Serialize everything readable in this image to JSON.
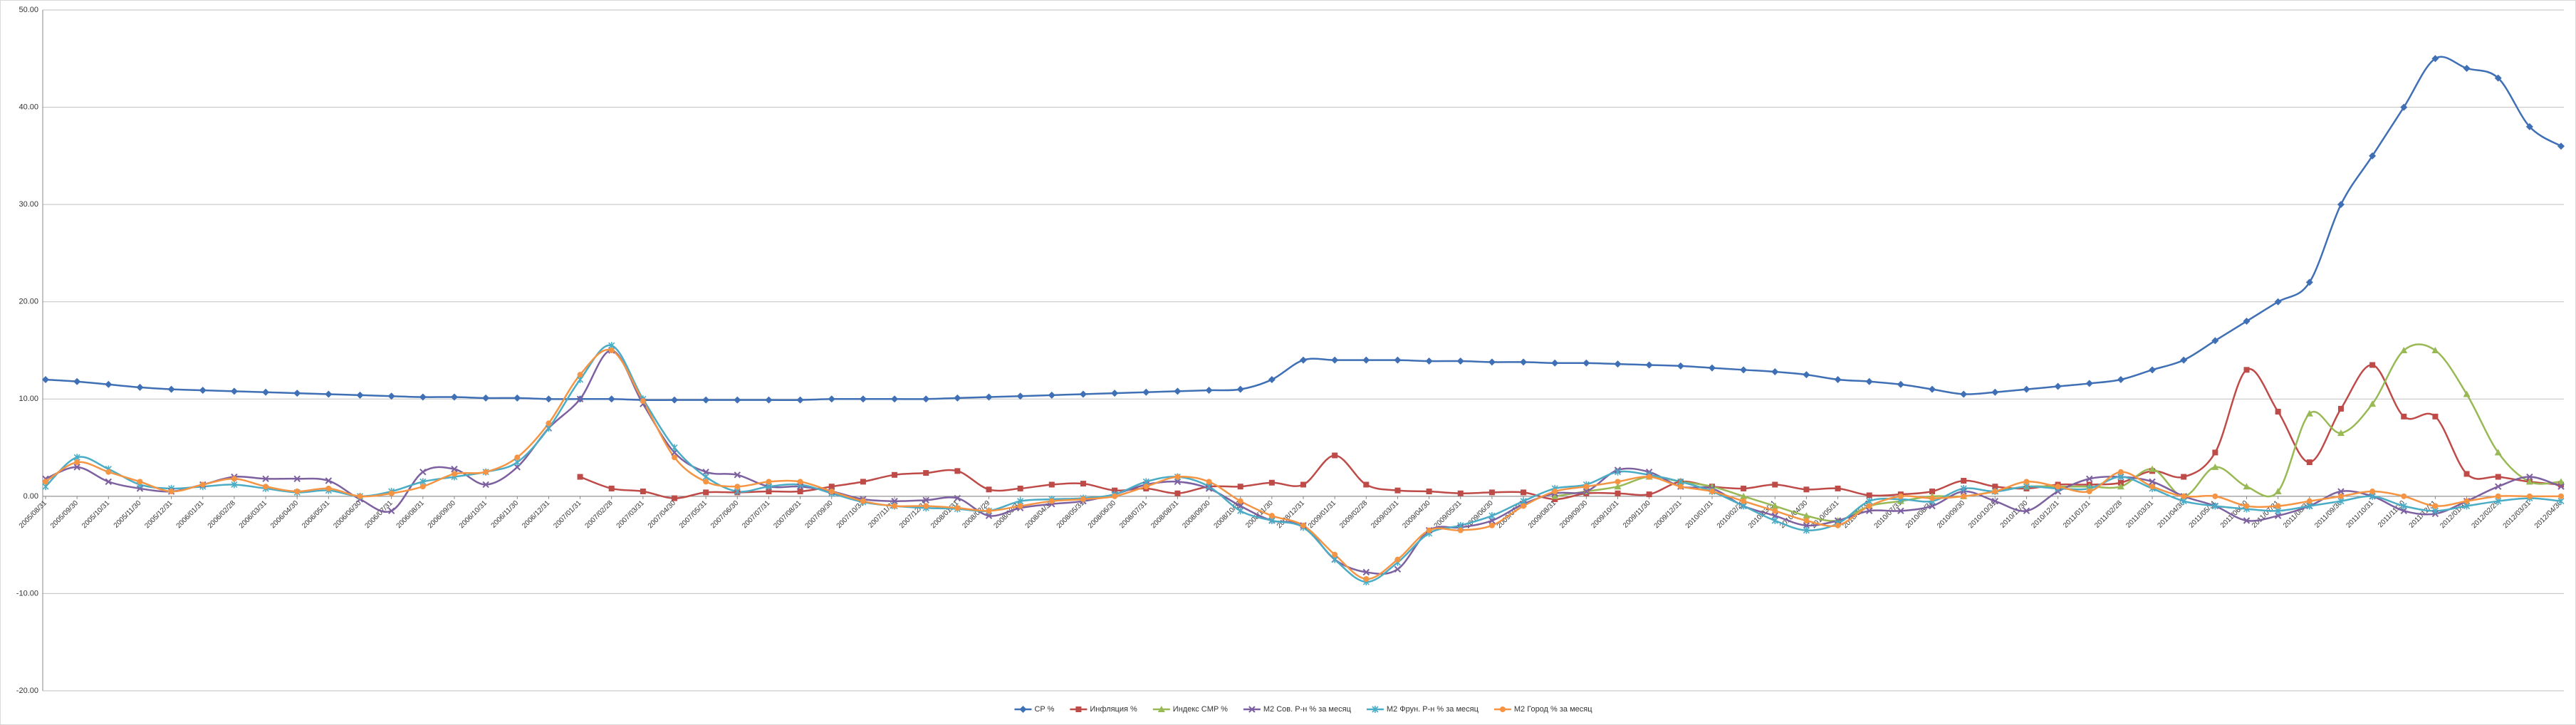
{
  "chart_data": {
    "type": "line",
    "categories": [
      "2005/08/31",
      "2005/09/30",
      "2005/10/31",
      "2005/11/30",
      "2005/12/31",
      "2006/01/31",
      "2006/02/28",
      "2006/03/31",
      "2006/04/30",
      "2006/05/31",
      "2006/06/30",
      "2006/07/31",
      "2006/08/31",
      "2006/09/30",
      "2006/10/31",
      "2006/11/30",
      "2006/12/31",
      "2007/01/31",
      "2007/02/28",
      "2007/03/31",
      "2007/04/30",
      "2007/05/31",
      "2007/06/30",
      "2007/07/31",
      "2007/08/31",
      "2007/09/30",
      "2007/10/31",
      "2007/11/30",
      "2007/12/31",
      "2008/01/31",
      "2008/02/29",
      "2008/03/31",
      "2008/04/30",
      "2008/05/31",
      "2008/06/30",
      "2008/07/31",
      "2008/08/31",
      "2008/09/30",
      "2008/10/31",
      "2008/11/30",
      "2008/12/31",
      "2009/01/31",
      "2009/02/28",
      "2009/03/31",
      "2009/04/30",
      "2009/05/31",
      "2009/06/30",
      "2009/07/31",
      "2009/08/31",
      "2009/09/30",
      "2009/10/31",
      "2009/11/30",
      "2009/12/31",
      "2010/01/31",
      "2010/02/28",
      "2010/03/31",
      "2010/04/30",
      "2010/05/31",
      "2010/06/30",
      "2010/07/31",
      "2010/08/31",
      "2010/09/30",
      "2010/10/31",
      "2010/11/30",
      "2010/12/31",
      "2011/01/31",
      "2011/02/28",
      "2011/03/31",
      "2011/04/30",
      "2011/05/31",
      "2011/06/30",
      "2011/07/31",
      "2011/08/31",
      "2011/09/30",
      "2011/10/31",
      "2011/11/30",
      "2011/12/31",
      "2012/01/31",
      "2012/02/29",
      "2012/03/31",
      "2012/04/30"
    ],
    "series": [
      {
        "name": "CP %",
        "color": "#3f6fb5",
        "marker": "diamond",
        "values": [
          12,
          11.8,
          11.5,
          11.2,
          11,
          10.9,
          10.8,
          10.7,
          10.6,
          10.5,
          10.4,
          10.3,
          10.2,
          10.2,
          10.1,
          10.1,
          10,
          10,
          10,
          9.9,
          9.9,
          9.9,
          9.9,
          9.9,
          9.9,
          10,
          10,
          10,
          10,
          10.1,
          10.2,
          10.3,
          10.4,
          10.5,
          10.6,
          10.7,
          10.8,
          10.9,
          11,
          12,
          14,
          14,
          14,
          14,
          13.9,
          13.9,
          13.8,
          13.8,
          13.7,
          13.7,
          13.6,
          13.5,
          13.4,
          13.2,
          13,
          12.8,
          12.5,
          12,
          11.8,
          11.5,
          11,
          10.5,
          10.7,
          11,
          11.3,
          11.6,
          12,
          13,
          14,
          16,
          18,
          20,
          22,
          30,
          35,
          40,
          45,
          44,
          43,
          38,
          36
        ]
      },
      {
        "name": "Инфляция %",
        "color": "#be4b48",
        "marker": "square",
        "values": [
          null,
          null,
          null,
          null,
          null,
          null,
          null,
          null,
          null,
          null,
          null,
          null,
          null,
          null,
          null,
          null,
          null,
          2,
          0.8,
          0.5,
          -0.2,
          0.4,
          0.4,
          0.5,
          0.5,
          1,
          1.5,
          2.2,
          2.4,
          2.6,
          0.7,
          0.8,
          1.2,
          1.3,
          0.6,
          0.8,
          0.3,
          1,
          1,
          1.4,
          1.2,
          4.2,
          1.2,
          0.6,
          0.5,
          0.3,
          0.4,
          0.4,
          -0.3,
          0.3,
          0.3,
          0.2,
          1.5,
          1,
          0.8,
          1.2,
          0.7,
          0.8,
          0.1,
          0.2,
          0.5,
          1.6,
          1,
          0.8,
          1.2,
          1.2,
          1.4,
          2.6,
          2,
          4.5,
          13,
          8.7,
          3.5,
          9,
          13.5,
          8.2,
          8.2,
          2.3,
          2,
          1.5,
          1.2
        ]
      },
      {
        "name": "Индекс CMP %",
        "color": "#98b954",
        "marker": "triangle",
        "values": [
          null,
          null,
          null,
          null,
          null,
          null,
          null,
          null,
          null,
          null,
          null,
          null,
          null,
          null,
          null,
          null,
          null,
          null,
          null,
          null,
          null,
          null,
          null,
          null,
          null,
          null,
          null,
          null,
          null,
          null,
          null,
          null,
          null,
          null,
          null,
          null,
          null,
          null,
          null,
          null,
          null,
          null,
          null,
          null,
          null,
          null,
          null,
          null,
          0,
          0.5,
          1,
          2,
          1.5,
          1,
          0,
          -1,
          -2,
          -2.5,
          -1,
          -0.5,
          0,
          0,
          0.5,
          1,
          1,
          1,
          1,
          2.8,
          0,
          3,
          1,
          0.5,
          8.5,
          6.5,
          9.5,
          15,
          15,
          10.5,
          4.5,
          1.5,
          1.5
        ]
      },
      {
        "name": "M2 Сов. Р-н % за месяц",
        "color": "#7d60a0",
        "marker": "cross",
        "values": [
          1.8,
          3,
          1.5,
          0.8,
          0.5,
          1.2,
          2,
          1.8,
          1.8,
          1.6,
          -0.3,
          -1.5,
          2.5,
          2.8,
          1.2,
          3,
          7,
          10,
          15,
          9.5,
          4.5,
          2.5,
          2.2,
          1,
          1,
          0.5,
          -0.3,
          -0.5,
          -0.4,
          -0.2,
          -2,
          -1.2,
          -0.8,
          -0.5,
          0.2,
          1.2,
          1.5,
          0.8,
          -1,
          -2.5,
          -3,
          -6.5,
          -7.8,
          -7.5,
          -3.5,
          -3.2,
          -2.5,
          -0.8,
          0.3,
          0.5,
          2.7,
          2.5,
          1,
          0.8,
          -1,
          -2,
          -3,
          -2.5,
          -1.5,
          -1.5,
          -1,
          0.5,
          -0.5,
          -1.5,
          0.5,
          1.8,
          2,
          1.5,
          0,
          -1,
          -2.5,
          -2,
          -1,
          0.5,
          0,
          -1.5,
          -1.8,
          -0.5,
          1,
          2,
          1
        ]
      },
      {
        "name": "M2 Фрун. Р-н % за месяц",
        "color": "#4aacc5",
        "marker": "star",
        "values": [
          1,
          4,
          2.8,
          1.2,
          0.8,
          1,
          1.2,
          0.8,
          0.4,
          0.6,
          0,
          0.5,
          1.5,
          2,
          2.5,
          3.5,
          7,
          12,
          15.5,
          10,
          5,
          2,
          0.5,
          1,
          1.2,
          0.3,
          -0.6,
          -1,
          -1.2,
          -1.3,
          -1.5,
          -0.5,
          -0.3,
          -0.2,
          0.2,
          1.5,
          2,
          1,
          -1.5,
          -2.5,
          -3.2,
          -6.5,
          -8.8,
          -6.8,
          -3.8,
          -3,
          -2,
          -0.5,
          0.8,
          1.2,
          2.5,
          2.2,
          1.5,
          0.5,
          -1,
          -2.5,
          -3.5,
          -2.8,
          -0.5,
          -0.3,
          -0.5,
          0.8,
          0.5,
          1,
          0.8,
          0.8,
          2,
          0.8,
          -0.5,
          -1,
          -1.3,
          -1.5,
          -1,
          -0.5,
          0,
          -1,
          -1.5,
          -1,
          -0.5,
          -0.2,
          -0.5
        ]
      },
      {
        "name": "M2 Город % за месяц",
        "color": "#f59443",
        "marker": "circle",
        "values": [
          1.5,
          3.5,
          2.5,
          1.5,
          0.5,
          1.2,
          1.8,
          1,
          0.5,
          0.8,
          0,
          0.3,
          1,
          2.3,
          2.5,
          4,
          7.5,
          12.5,
          15,
          9.8,
          4,
          1.5,
          1,
          1.5,
          1.5,
          0.5,
          -0.5,
          -1,
          -1,
          -1.2,
          -1.5,
          -1,
          -0.5,
          -0.3,
          0,
          1,
          2,
          1.5,
          -0.5,
          -2,
          -3,
          -6,
          -8.5,
          -6.5,
          -3.5,
          -3.5,
          -3,
          -1,
          0.5,
          1,
          1.5,
          2,
          1,
          0.5,
          -0.5,
          -1.5,
          -2.5,
          -3,
          -1,
          0,
          -0.2,
          0,
          0.5,
          1.5,
          1,
          0.5,
          2.5,
          1,
          0,
          0,
          -1,
          -1,
          -0.5,
          0,
          0.5,
          0,
          -1,
          -0.5,
          0,
          0,
          0
        ]
      }
    ],
    "ylim": [
      -20,
      50
    ],
    "yticks": [
      {
        "value": -20,
        "label": "-20.00"
      },
      {
        "value": -10,
        "label": "-10.00"
      },
      {
        "value": 0,
        "label": "0.00"
      },
      {
        "value": 10,
        "label": "10.00"
      },
      {
        "value": 20,
        "label": "20.00"
      },
      {
        "value": 30,
        "label": "30.00"
      },
      {
        "value": 40,
        "label": "40.00"
      },
      {
        "value": 50,
        "label": "50.00"
      }
    ],
    "grid": true,
    "smooth": true,
    "legend": "bottom"
  }
}
